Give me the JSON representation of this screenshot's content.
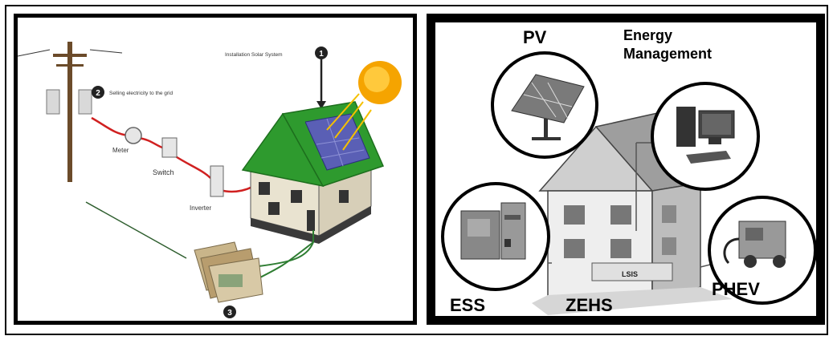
{
  "left": {
    "label_install": "Installation Solar System",
    "label_selling": "Selling electricity to the grid",
    "label_meter": "Meter",
    "label_switch": "Switch",
    "label_inverter": "Inverter",
    "num1": "1",
    "num2": "2",
    "num3": "3",
    "colors": {
      "roof": "#2e9a2e",
      "sun": "#f5a400",
      "wire": "#d02020",
      "ground_wire": "#2e7d32"
    }
  },
  "right": {
    "label_pv": "PV",
    "label_energy": "Energy",
    "label_management": "Management",
    "label_ess": "ESS",
    "label_zehs": "ZEHS",
    "label_phev": "PHEV",
    "label_plate": "LSIS"
  }
}
